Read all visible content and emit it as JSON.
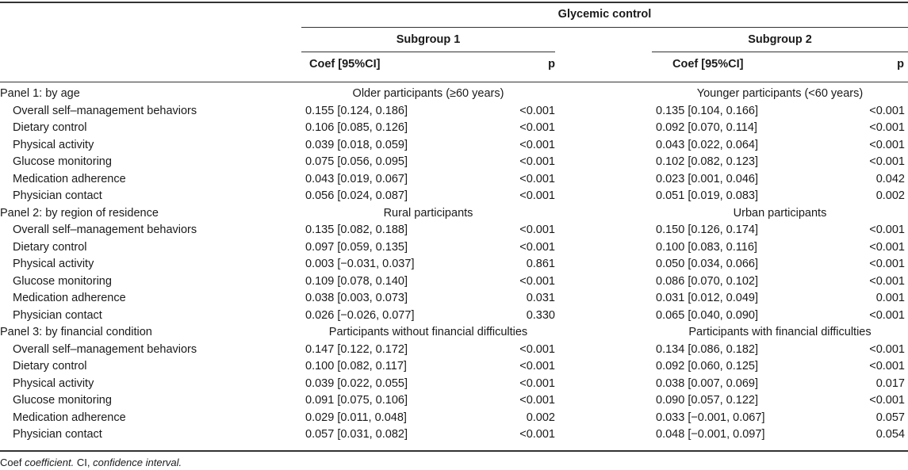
{
  "header": {
    "group_title": "Glycemic control",
    "subgroup1": "Subgroup 1",
    "subgroup2": "Subgroup 2",
    "coef_label": "Coef [95%CI]",
    "p_label": "p"
  },
  "panels": [
    {
      "label": "Panel 1: by age",
      "sub1": "Older participants (≥60 years)",
      "sub2": "Younger participants (<60 years)",
      "rows": [
        {
          "name": "Overall self–management behaviors",
          "c1": "0.155 [0.124, 0.186]",
          "p1": "<0.001",
          "c2": "0.135 [0.104, 0.166]",
          "p2": "<0.001"
        },
        {
          "name": "Dietary control",
          "c1": "0.106 [0.085, 0.126]",
          "p1": "<0.001",
          "c2": "0.092 [0.070, 0.114]",
          "p2": "<0.001"
        },
        {
          "name": "Physical activity",
          "c1": "0.039 [0.018, 0.059]",
          "p1": "<0.001",
          "c2": "0.043 [0.022, 0.064]",
          "p2": "<0.001"
        },
        {
          "name": "Glucose monitoring",
          "c1": "0.075 [0.056, 0.095]",
          "p1": "<0.001",
          "c2": "0.102 [0.082, 0.123]",
          "p2": "<0.001"
        },
        {
          "name": "Medication adherence",
          "c1": "0.043 [0.019, 0.067]",
          "p1": "<0.001",
          "c2": "0.023 [0.001, 0.046]",
          "p2": "0.042"
        },
        {
          "name": "Physician contact",
          "c1": "0.056 [0.024, 0.087]",
          "p1": "<0.001",
          "c2": "0.051 [0.019, 0.083]",
          "p2": "0.002"
        }
      ]
    },
    {
      "label": "Panel 2: by region of residence",
      "sub1": "Rural participants",
      "sub2": "Urban participants",
      "rows": [
        {
          "name": "Overall self–management behaviors",
          "c1": "0.135 [0.082, 0.188]",
          "p1": "<0.001",
          "c2": "0.150 [0.126, 0.174]",
          "p2": "<0.001"
        },
        {
          "name": "Dietary control",
          "c1": "0.097 [0.059, 0.135]",
          "p1": "<0.001",
          "c2": "0.100 [0.083, 0.116]",
          "p2": "<0.001"
        },
        {
          "name": "Physical activity",
          "c1": "0.003 [−0.031, 0.037]",
          "p1": "0.861",
          "c2": "0.050 [0.034, 0.066]",
          "p2": "<0.001"
        },
        {
          "name": "Glucose monitoring",
          "c1": "0.109 [0.078, 0.140]",
          "p1": "<0.001",
          "c2": "0.086 [0.070, 0.102]",
          "p2": "<0.001"
        },
        {
          "name": "Medication adherence",
          "c1": "0.038 [0.003, 0.073]",
          "p1": "0.031",
          "c2": "0.031 [0.012, 0.049]",
          "p2": "0.001"
        },
        {
          "name": "Physician contact",
          "c1": "0.026 [−0.026, 0.077]",
          "p1": "0.330",
          "c2": "0.065 [0.040, 0.090]",
          "p2": "<0.001"
        }
      ]
    },
    {
      "label": "Panel 3: by financial condition",
      "sub1": "Participants without financial difficulties",
      "sub2": "Participants with financial difficulties",
      "rows": [
        {
          "name": "Overall self–management behaviors",
          "c1": "0.147 [0.122, 0.172]",
          "p1": "<0.001",
          "c2": "0.134 [0.086, 0.182]",
          "p2": "<0.001"
        },
        {
          "name": "Dietary control",
          "c1": "0.100 [0.082, 0.117]",
          "p1": "<0.001",
          "c2": "0.092 [0.060, 0.125]",
          "p2": "<0.001"
        },
        {
          "name": "Physical activity",
          "c1": "0.039 [0.022, 0.055]",
          "p1": "<0.001",
          "c2": "0.038 [0.007, 0.069]",
          "p2": "0.017"
        },
        {
          "name": "Glucose monitoring",
          "c1": "0.091 [0.075, 0.106]",
          "p1": "<0.001",
          "c2": "0.090 [0.057, 0.122]",
          "p2": "<0.001"
        },
        {
          "name": "Medication adherence",
          "c1": "0.029 [0.011, 0.048]",
          "p1": "0.002",
          "c2": "0.033 [−0.001, 0.067]",
          "p2": "0.057"
        },
        {
          "name": "Physician contact",
          "c1": "0.057 [0.031, 0.082]",
          "p1": "<0.001",
          "c2": "0.048 [−0.001, 0.097]",
          "p2": "0.054"
        }
      ]
    }
  ],
  "footnote": {
    "coef_abbr": "Coef",
    "coef_def": "coefficient.",
    "ci_abbr": "CI,",
    "ci_def": "confidence interval."
  }
}
